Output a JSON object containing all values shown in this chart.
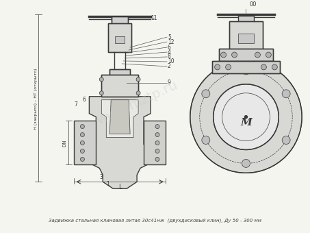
{
  "title": "",
  "caption": "Задвижка стальная клиновая литая 30с41нж  (двухдисковый клин), Ду 50 - 300 мм",
  "background_color": "#f5f5f0",
  "line_color": "#3a3a3a",
  "watermark": "www.mztp.ru",
  "watermark_color": "#c8c8c8",
  "fig_width": 4.53,
  "fig_height": 3.4,
  "dpi": 100,
  "label_left": "H (закрыто) – НТ (открыто)",
  "label_parts_left": [
    "11",
    "5",
    "12",
    "6",
    "4",
    "8",
    "10",
    "2",
    "9",
    "6",
    "7",
    "3",
    "1"
  ],
  "label_parts_right": [
    "00"
  ]
}
